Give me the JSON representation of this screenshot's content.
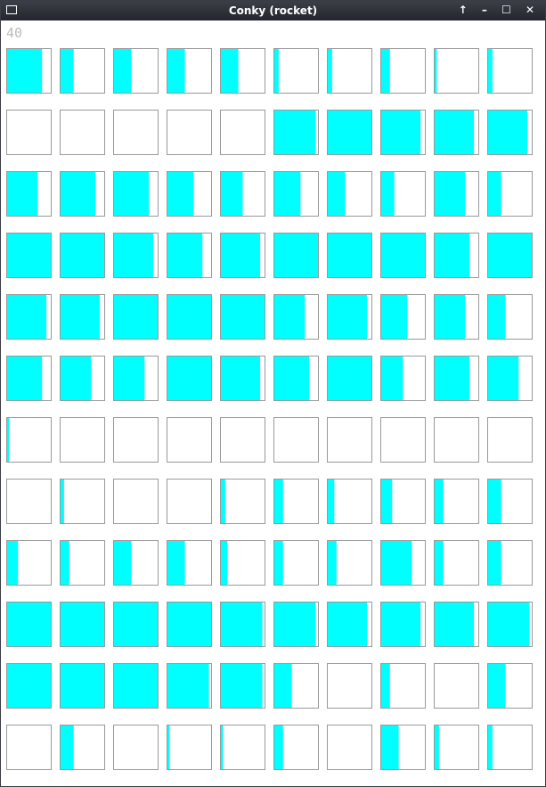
{
  "window": {
    "title": "Conky (rocket)"
  },
  "counter": "40",
  "graphs": {
    "series_unit": "cyan_percent",
    "rows": [
      [
        80,
        30,
        40,
        40,
        40,
        10,
        10,
        20,
        5,
        10
      ],
      [
        0,
        0,
        0,
        0,
        0,
        95,
        100,
        90,
        90,
        90
      ],
      [
        70,
        80,
        80,
        60,
        50,
        60,
        40,
        30,
        70,
        30
      ],
      [
        100,
        100,
        90,
        80,
        90,
        100,
        100,
        100,
        80,
        100
      ],
      [
        90,
        90,
        100,
        100,
        100,
        70,
        90,
        60,
        70,
        40
      ],
      [
        80,
        70,
        70,
        100,
        90,
        80,
        100,
        50,
        80,
        70
      ],
      [
        5,
        0,
        0,
        0,
        0,
        0,
        0,
        0,
        0,
        0
      ],
      [
        0,
        8,
        0,
        0,
        10,
        20,
        15,
        25,
        20,
        30
      ],
      [
        25,
        20,
        40,
        40,
        15,
        20,
        20,
        70,
        20,
        30
      ],
      [
        100,
        100,
        100,
        100,
        95,
        95,
        90,
        90,
        90,
        95
      ],
      [
        100,
        100,
        100,
        95,
        95,
        40,
        0,
        20,
        0,
        40
      ],
      [
        0,
        30,
        0,
        5,
        5,
        20,
        0,
        40,
        10,
        10
      ]
    ]
  }
}
